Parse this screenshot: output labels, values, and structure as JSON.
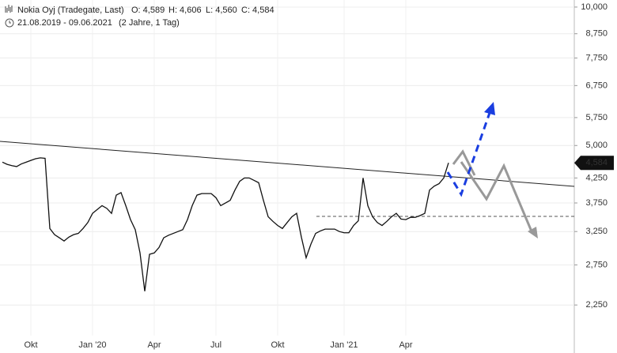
{
  "chart_data": {
    "type": "line",
    "title": "Nokia Oyj (Tradegate, Last)",
    "ohlc_labels": [
      "O: 4,589",
      "H: 4,606",
      "L: 4,560",
      "C: 4,584"
    ],
    "period": "21.08.2019 - 09.06.2021",
    "period_note": "(2 Jahre, 1 Tag)",
    "log_scale": true,
    "grid": true,
    "categories": [
      null,
      null,
      null,
      null,
      null,
      null,
      "Okt",
      null,
      null,
      null,
      null,
      null,
      null,
      null,
      null,
      null,
      null,
      null,
      null,
      "Jan '20",
      null,
      null,
      null,
      null,
      null,
      null,
      null,
      null,
      null,
      null,
      null,
      null,
      "Apr",
      null,
      null,
      null,
      null,
      null,
      null,
      null,
      null,
      null,
      null,
      null,
      null,
      "Jul",
      null,
      null,
      null,
      null,
      null,
      null,
      null,
      null,
      null,
      null,
      null,
      null,
      "Okt",
      null,
      null,
      null,
      null,
      null,
      null,
      null,
      null,
      null,
      null,
      null,
      null,
      null,
      "Jan '21",
      null,
      null,
      null,
      null,
      null,
      null,
      null,
      null,
      null,
      null,
      null,
      null,
      "Apr",
      null,
      null,
      null,
      null,
      null,
      null,
      null,
      null,
      null
    ],
    "series": [
      {
        "color": "#111111",
        "values": [
          4600,
          4550,
          4520,
          4500,
          4560,
          4600,
          4640,
          4680,
          4700,
          4690,
          3300,
          3200,
          3150,
          3100,
          3160,
          3200,
          3220,
          3300,
          3400,
          3560,
          3630,
          3700,
          3650,
          3560,
          3900,
          3950,
          3700,
          3450,
          3280,
          2920,
          2410,
          2900,
          2920,
          3000,
          3150,
          3190,
          3220,
          3250,
          3280,
          3450,
          3700,
          3900,
          3930,
          3930,
          3930,
          3850,
          3700,
          3750,
          3800,
          4000,
          4180,
          4250,
          4250,
          4200,
          4150,
          3800,
          3500,
          3420,
          3350,
          3300,
          3400,
          3500,
          3560,
          3160,
          2850,
          3050,
          3220,
          3260,
          3290,
          3290,
          3290,
          3250,
          3230,
          3230,
          3350,
          3430,
          4250,
          3700,
          3500,
          3400,
          3350,
          3420,
          3500,
          3560,
          3460,
          3450,
          3490,
          3490,
          3520,
          3560,
          4000,
          4080,
          4130,
          4250,
          4584
        ]
      }
    ],
    "ylim": [
      1930,
      10360
    ],
    "yticks": [
      {
        "value": 2250,
        "label": "2,250"
      },
      {
        "value": 2750,
        "label": "2,750"
      },
      {
        "value": 3250,
        "label": "3,250"
      },
      {
        "value": 3750,
        "label": "3,750"
      },
      {
        "value": 4250,
        "label": "4,250"
      },
      {
        "value": 5000,
        "label": "5,000"
      },
      {
        "value": 5750,
        "label": "5,750"
      },
      {
        "value": 6750,
        "label": "6,750"
      },
      {
        "value": 7750,
        "label": "7,750"
      },
      {
        "value": 8750,
        "label": "8,750"
      },
      {
        "value": 10000,
        "label": "10,000"
      }
    ],
    "price_marker": {
      "value": 4584,
      "label": "4,584"
    }
  }
}
